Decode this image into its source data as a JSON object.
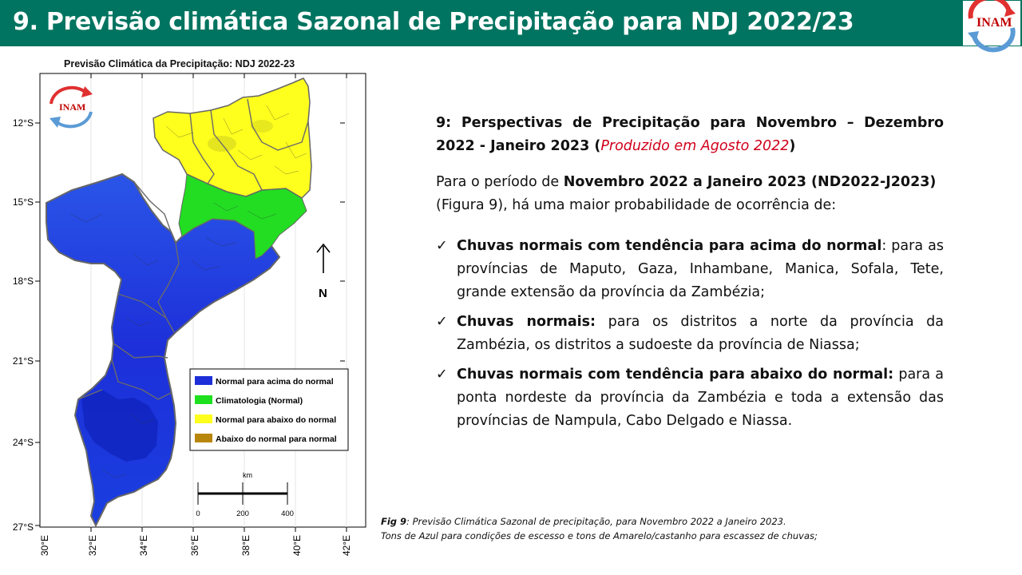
{
  "header": {
    "title": "9. Previsão climática Sazonal de Precipitação para NDJ 2022/23",
    "logo_text": "INAM"
  },
  "map": {
    "title": "Previsão Climática da Precipitação: NDJ 2022-23",
    "logo_text": "INAM",
    "lat_ticks": [
      "12°S",
      "15°S",
      "18°S",
      "21°S",
      "24°S",
      "27°S"
    ],
    "lon_ticks": [
      "30°E",
      "32°E",
      "34°E",
      "36°E",
      "38°E",
      "40°E",
      "42°E"
    ],
    "north_label": "N",
    "legend": [
      {
        "label": "Normal para acima do normal",
        "color": "#1d2fd9"
      },
      {
        "label": "Climatologia (Normal)",
        "color": "#1fe01f"
      },
      {
        "label": "Normal para abaixo do normal",
        "color": "#ffff1e"
      },
      {
        "label": "Abaixo do normal para normal",
        "color": "#b8860b"
      }
    ],
    "scale": {
      "unit": "km",
      "labels": [
        "0",
        "200",
        "400"
      ]
    }
  },
  "content": {
    "heading_bold": "9: Perspectivas de Precipitação para Novembro – Dezembro 2022 - Janeiro 2023 (",
    "heading_red": "Produzido em Agosto 2022",
    "heading_close": ")",
    "intro_pre": "Para o período de ",
    "intro_bold": "Novembro 2022 a Janeiro 2023",
    "intro_mid": " (ND2022-J2023)",
    "intro_post": " (Figura 9), há uma maior probabilidade de ocorrência de:",
    "bullets": [
      {
        "bold": "Chuvas normais com tendência para acima do normal",
        "text": ": para as províncias de Maputo, Gaza, Inhambane, Manica, Sofala, Tete, grande extensão da província da Zambézia;"
      },
      {
        "bold": "Chuvas normais:",
        "text": " para os distritos a norte da província da Zambézia, os distritos a sudoeste da província de Niassa;"
      },
      {
        "bold": "Chuvas normais com tendência para abaixo do normal:",
        "text": " para a ponta nordeste da província da Zambézia e toda a extensão das províncias de Nampula, Cabo Delgado e Niassa."
      }
    ],
    "check_symbol": "✓"
  },
  "caption": {
    "label": "Fig 9",
    "line1": ": Previsão Climática Sazonal de precipitação, para Novembro 2022 a Janeiro 2023.",
    "line2": "Tons de Azul para condições de escesso e tons de Amarelo/castanho para escassez de chuvas;"
  },
  "colors": {
    "header_bg": "#007460",
    "accent_red": "#d0021b"
  }
}
